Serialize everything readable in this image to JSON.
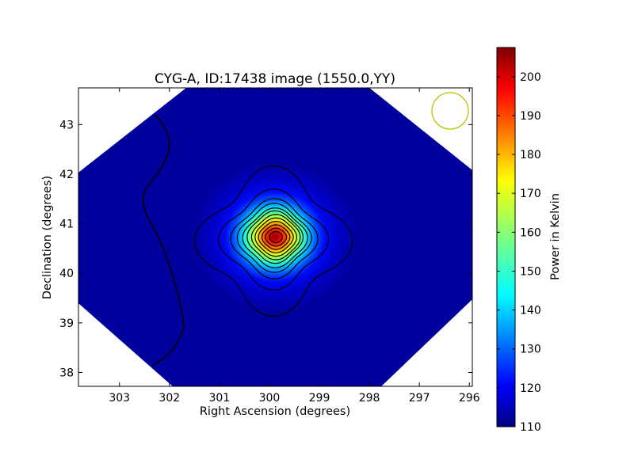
{
  "chart_data": {
    "type": "heatmap",
    "title": "CYG-A, ID:17438 image (1550.0,YY)",
    "xlabel": "Right Ascension (degrees)",
    "ylabel": "Declination (degrees)",
    "xlim": [
      303.82,
      295.94
    ],
    "ylim": [
      37.72,
      43.74
    ],
    "x_ticks": [
      303,
      302,
      301,
      300,
      299,
      298,
      297,
      296
    ],
    "x_tick_labels": [
      "303",
      "302",
      "301",
      "300",
      "299",
      "298",
      "297",
      "296"
    ],
    "y_ticks": [
      38,
      39,
      40,
      41,
      42,
      43
    ],
    "y_tick_labels": [
      "38",
      "39",
      "40",
      "41",
      "42",
      "43"
    ],
    "colorbar": {
      "label": "Power in Kelvin",
      "min": 110,
      "max": 207.5,
      "ticks": [
        110,
        120,
        130,
        140,
        150,
        160,
        170,
        180,
        190,
        200
      ],
      "tick_labels": [
        "110",
        "120",
        "130",
        "140",
        "150",
        "160",
        "170",
        "180",
        "190",
        "200"
      ],
      "colormap": "jet"
    },
    "source": {
      "ra": 299.87,
      "dec": 40.73,
      "peak": 207.5
    },
    "background_level": 110,
    "beam_marker": {
      "ra": 296.38,
      "dec": 43.27,
      "color": "#bfbf00"
    },
    "contour_color": "#000000",
    "grid": false
  }
}
